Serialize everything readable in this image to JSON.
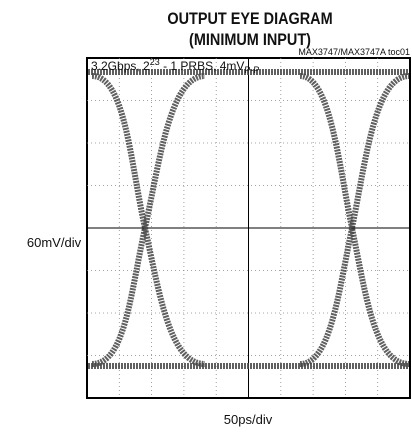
{
  "title": {
    "line1": "OUTPUT EYE DIAGRAM",
    "line2": "(MINIMUM INPUT)"
  },
  "part_number": "MAX3747/MAX3747A toc01",
  "annotation": {
    "parts": [
      "3.2Gbps, 2",
      "23",
      " - 1 PRBS, 4mV",
      "P-P"
    ]
  },
  "y_label": "60mV/div",
  "x_label": "50ps/div"
}
